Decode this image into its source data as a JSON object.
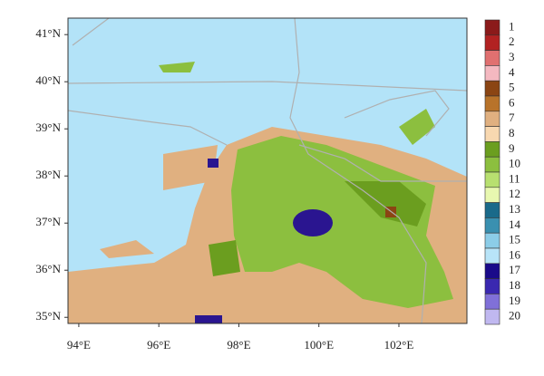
{
  "chart_data": {
    "type": "map",
    "xlim": [
      93.73,
      103.7
    ],
    "ylim": [
      34.87,
      41.35
    ],
    "xticks": [
      {
        "value": 94,
        "label": "94°E"
      },
      {
        "value": 96,
        "label": "96°E"
      },
      {
        "value": 98,
        "label": "98°E"
      },
      {
        "value": 100,
        "label": "100°E"
      },
      {
        "value": 102,
        "label": "102°E"
      }
    ],
    "yticks": [
      {
        "value": 35,
        "label": "35°N"
      },
      {
        "value": 36,
        "label": "36°N"
      },
      {
        "value": 37,
        "label": "37°N"
      },
      {
        "value": 38,
        "label": "38°N"
      },
      {
        "value": 39,
        "label": "39°N"
      },
      {
        "value": 40,
        "label": "40°N"
      },
      {
        "value": 41,
        "label": "41°N"
      }
    ],
    "legend": {
      "categories": [
        "1",
        "2",
        "3",
        "4",
        "5",
        "6",
        "7",
        "8",
        "9",
        "10",
        "11",
        "12",
        "13",
        "14",
        "15",
        "16",
        "17",
        "18",
        "19",
        "20"
      ],
      "colors": [
        "#8b1a1a",
        "#b22222",
        "#e07070",
        "#f4b8c0",
        "#8b4513",
        "#b8732a",
        "#e0b080",
        "#f8d8b0",
        "#6b9e1f",
        "#8cbf3f",
        "#b8e070",
        "#e8f8b0",
        "#1a6a8a",
        "#3a90b0",
        "#8ccde8",
        "#b8e4f8",
        "#1a0a8a",
        "#3a28b0",
        "#8070d8",
        "#c0b8f0"
      ]
    }
  }
}
